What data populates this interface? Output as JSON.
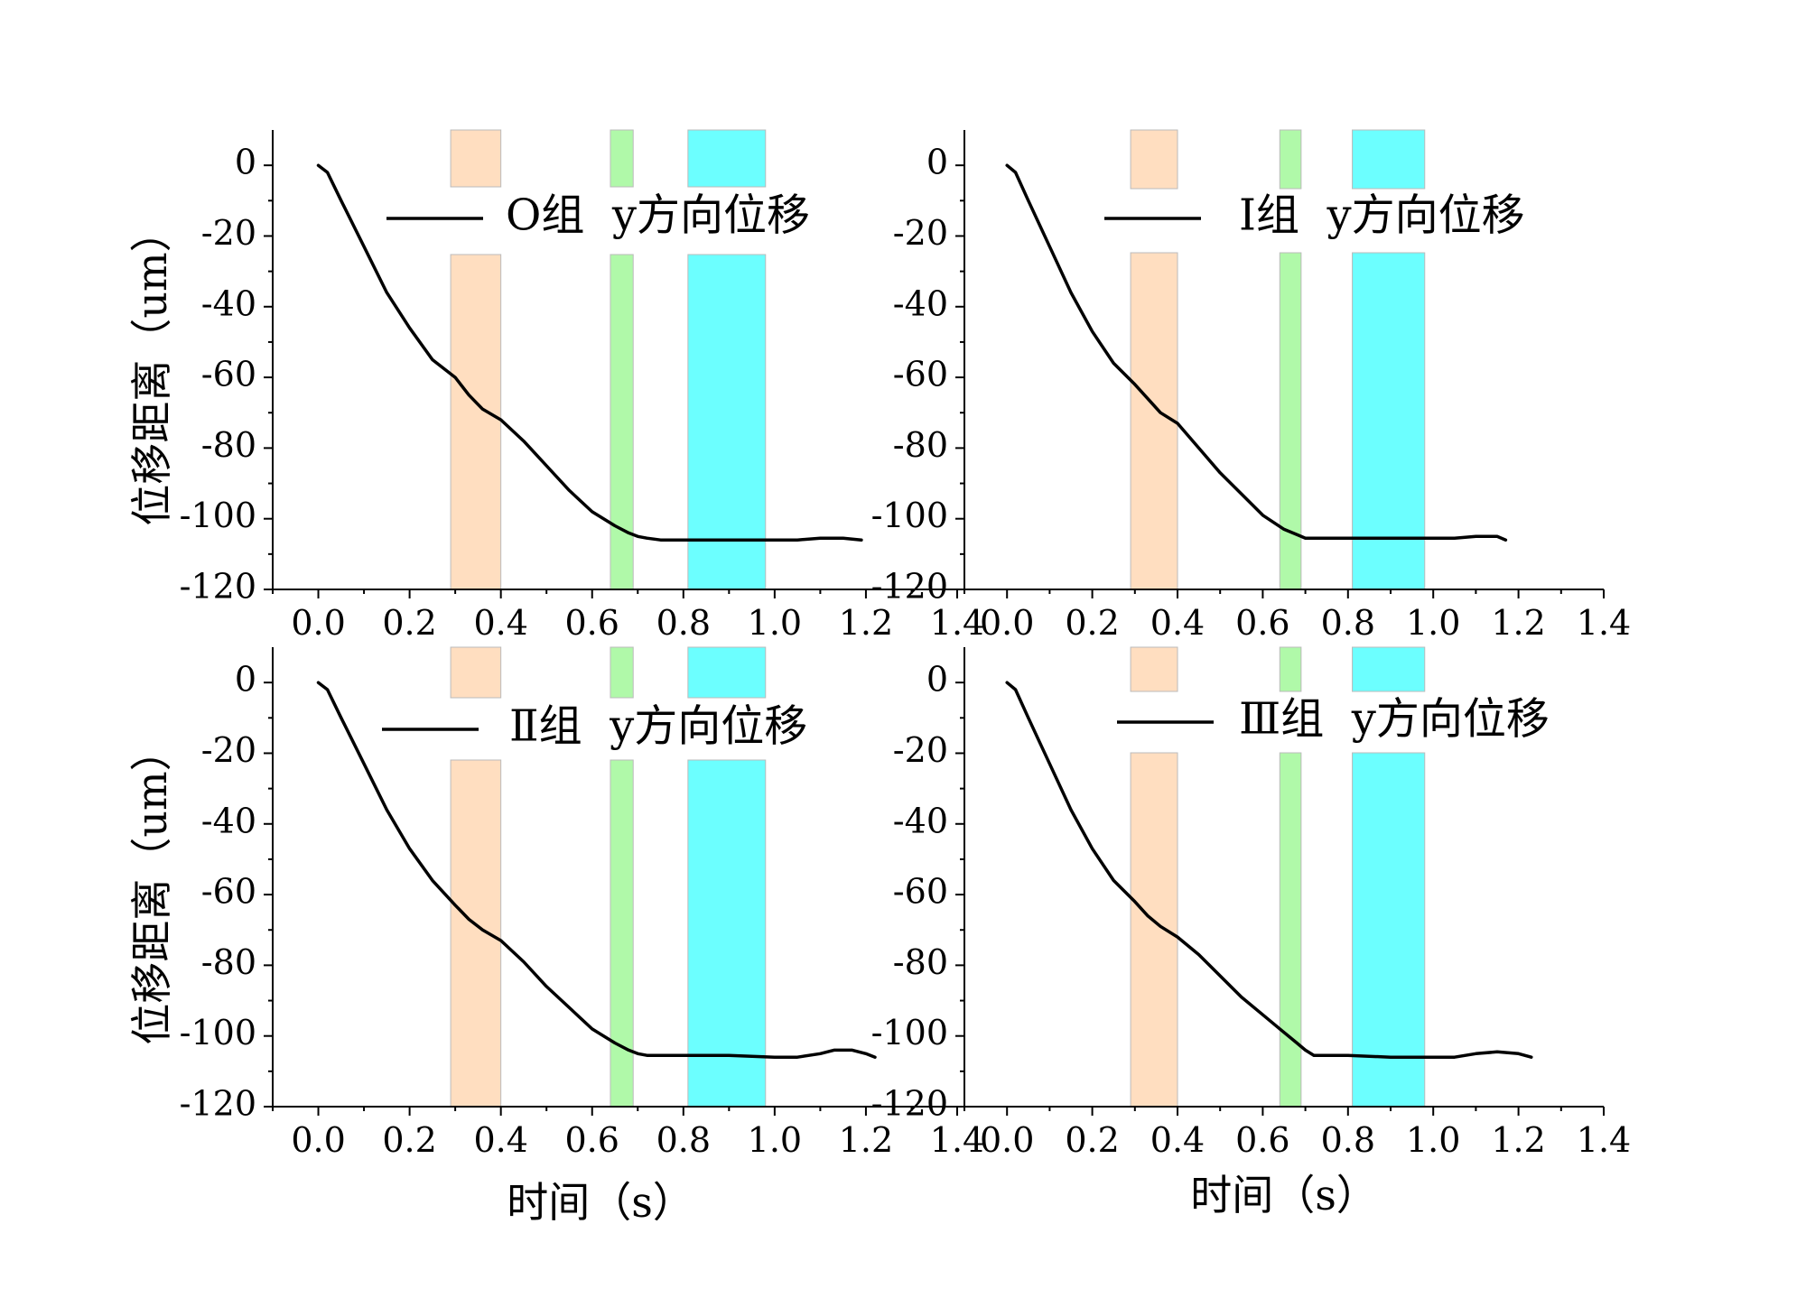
{
  "figure": {
    "ylabel": "位移距离（um）",
    "xlabel": "时间（s）",
    "colors": {
      "band1": "#FFDEC0",
      "band2": "#B0F9A9",
      "band3": "#6CFFFF",
      "line": "#000000",
      "axis": "#000000"
    }
  },
  "chart_data": [
    {
      "type": "line",
      "panel": "top-left",
      "xlim": [
        -0.1,
        1.4
      ],
      "ylim": [
        -120,
        10
      ],
      "xticks": [
        "0.0",
        "0.2",
        "0.4",
        "0.6",
        "0.8",
        "1.0",
        "1.2",
        "1.4"
      ],
      "yticks": [
        "0",
        "-20",
        "-40",
        "-60",
        "-80",
        "-100",
        "-120"
      ],
      "highlight_bands": [
        [
          0.29,
          0.4
        ],
        [
          0.64,
          0.69
        ],
        [
          0.81,
          0.98
        ]
      ],
      "legend_position": "top",
      "series": [
        {
          "name": "O组  y方向位移",
          "x": [
            0.0,
            0.02,
            0.05,
            0.1,
            0.15,
            0.2,
            0.25,
            0.3,
            0.33,
            0.36,
            0.4,
            0.45,
            0.5,
            0.55,
            0.6,
            0.65,
            0.68,
            0.7,
            0.72,
            0.75,
            0.8,
            0.9,
            1.0,
            1.05,
            1.1,
            1.15,
            1.19
          ],
          "y": [
            0,
            -2,
            -10,
            -23,
            -36,
            -46,
            -55,
            -60,
            -65,
            -69,
            -72,
            -78,
            -85,
            -92,
            -98,
            -102,
            -104,
            -105,
            -105.5,
            -106,
            -106,
            -106,
            -106,
            -106,
            -105.5,
            -105.5,
            -106
          ]
        }
      ]
    },
    {
      "type": "line",
      "panel": "top-right",
      "xlim": [
        -0.1,
        1.4
      ],
      "ylim": [
        -120,
        10
      ],
      "xticks": [
        "0.0",
        "0.2",
        "0.4",
        "0.6",
        "0.8",
        "1.0",
        "1.2",
        "1.4"
      ],
      "yticks": [
        "0",
        "-20",
        "-40",
        "-60",
        "-80",
        "-100",
        "-120"
      ],
      "highlight_bands": [
        [
          0.29,
          0.4
        ],
        [
          0.64,
          0.69
        ],
        [
          0.81,
          0.98
        ]
      ],
      "legend_position": "top",
      "series": [
        {
          "name": "Ⅰ组  y方向位移",
          "x": [
            0.0,
            0.02,
            0.05,
            0.1,
            0.15,
            0.2,
            0.25,
            0.3,
            0.33,
            0.36,
            0.4,
            0.45,
            0.5,
            0.55,
            0.6,
            0.65,
            0.68,
            0.7,
            0.75,
            0.8,
            0.9,
            1.0,
            1.05,
            1.1,
            1.15,
            1.17
          ],
          "y": [
            0,
            -2,
            -10,
            -23,
            -36,
            -47,
            -56,
            -62,
            -66,
            -70,
            -73,
            -80,
            -87,
            -93,
            -99,
            -103,
            -104.5,
            -105.5,
            -105.5,
            -105.5,
            -105.5,
            -105.5,
            -105.5,
            -105,
            -105,
            -106
          ]
        }
      ]
    },
    {
      "type": "line",
      "panel": "bottom-left",
      "xlim": [
        -0.1,
        1.4
      ],
      "ylim": [
        -120,
        10
      ],
      "xticks": [
        "0.0",
        "0.2",
        "0.4",
        "0.6",
        "0.8",
        "1.0",
        "1.2",
        "1.4"
      ],
      "yticks": [
        "0",
        "-20",
        "-40",
        "-60",
        "-80",
        "-100",
        "-120"
      ],
      "highlight_bands": [
        [
          0.29,
          0.4
        ],
        [
          0.64,
          0.69
        ],
        [
          0.81,
          0.98
        ]
      ],
      "legend_position": "top",
      "series": [
        {
          "name": "Ⅱ组  y方向位移",
          "x": [
            0.0,
            0.02,
            0.05,
            0.1,
            0.15,
            0.2,
            0.25,
            0.3,
            0.33,
            0.36,
            0.4,
            0.45,
            0.5,
            0.55,
            0.6,
            0.65,
            0.68,
            0.7,
            0.72,
            0.8,
            0.9,
            1.0,
            1.05,
            1.1,
            1.13,
            1.17,
            1.2,
            1.22
          ],
          "y": [
            0,
            -2,
            -10,
            -23,
            -36,
            -47,
            -56,
            -63,
            -67,
            -70,
            -73,
            -79,
            -86,
            -92,
            -98,
            -102,
            -104,
            -105,
            -105.5,
            -105.5,
            -105.5,
            -106,
            -106,
            -105,
            -104,
            -104,
            -105,
            -106
          ]
        }
      ]
    },
    {
      "type": "line",
      "panel": "bottom-right",
      "xlim": [
        -0.1,
        1.4
      ],
      "ylim": [
        -120,
        10
      ],
      "xticks": [
        "0.0",
        "0.2",
        "0.4",
        "0.6",
        "0.8",
        "1.0",
        "1.2",
        "1.4"
      ],
      "yticks": [
        "0",
        "-20",
        "-40",
        "-60",
        "-80",
        "-100",
        "-120"
      ],
      "highlight_bands": [
        [
          0.29,
          0.4
        ],
        [
          0.64,
          0.69
        ],
        [
          0.81,
          0.98
        ]
      ],
      "legend_position": "top",
      "series": [
        {
          "name": "Ⅲ组  y方向位移",
          "x": [
            0.0,
            0.02,
            0.05,
            0.1,
            0.15,
            0.2,
            0.25,
            0.3,
            0.33,
            0.36,
            0.4,
            0.45,
            0.5,
            0.55,
            0.6,
            0.65,
            0.68,
            0.7,
            0.72,
            0.75,
            0.8,
            0.9,
            1.0,
            1.05,
            1.1,
            1.15,
            1.2,
            1.23
          ],
          "y": [
            0,
            -2,
            -10,
            -23,
            -36,
            -47,
            -56,
            -62,
            -66,
            -69,
            -72,
            -77,
            -83,
            -89,
            -94,
            -99,
            -102,
            -104,
            -105.5,
            -105.5,
            -105.5,
            -106,
            -106,
            -106,
            -105,
            -104.5,
            -105,
            -106
          ]
        }
      ]
    }
  ]
}
